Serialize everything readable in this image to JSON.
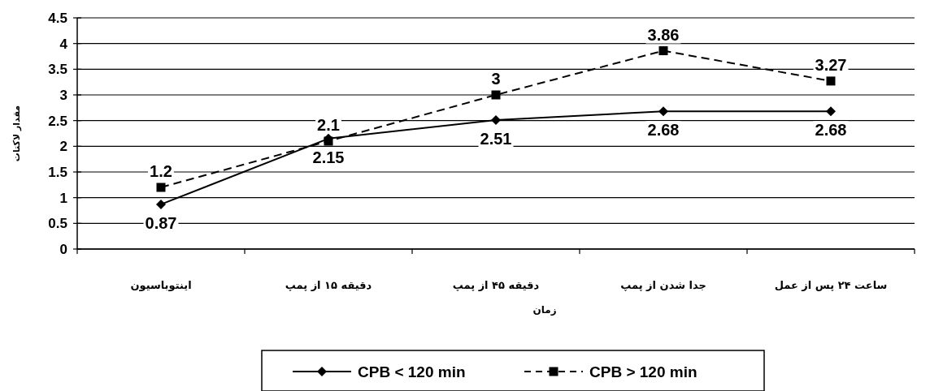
{
  "chart_data": {
    "type": "line",
    "xlabel": "زمان",
    "ylabel": "مقدار لاکتات",
    "categories": [
      "اینتوباسیون",
      "دقیقه ۱۵ از پمپ",
      "دقیقه ۴۵ از پمپ",
      "جدا شدن از پمپ",
      "ساعت ۲۴ پس از عمل"
    ],
    "series": [
      {
        "name": "CPB < 120 min",
        "color": "#000000",
        "values": [
          0.87,
          2.15,
          2.51,
          2.68,
          2.68
        ],
        "marker": "diamond",
        "line_style": "solid"
      },
      {
        "name": "CPB > 120 min",
        "color": "#000000",
        "values": [
          1.2,
          2.1,
          3,
          3.86,
          3.27
        ],
        "marker": "square",
        "line_style": "dashed"
      }
    ],
    "ylim": [
      0,
      4.5
    ],
    "yticks": [
      0,
      0.5,
      1,
      1.5,
      2,
      2.5,
      3,
      3.5,
      4,
      4.5
    ],
    "grid": "y",
    "legend": "bottom",
    "data_labels": true
  }
}
